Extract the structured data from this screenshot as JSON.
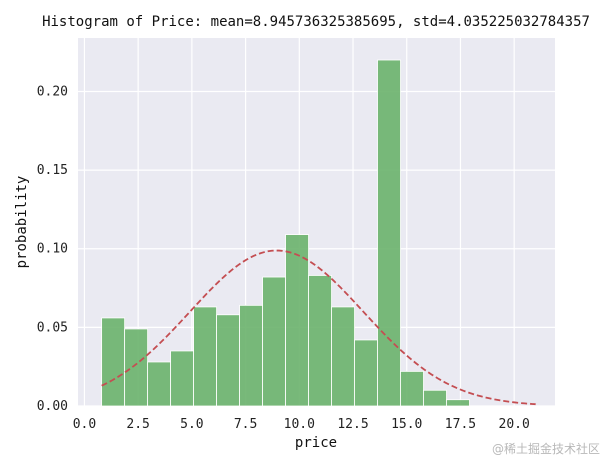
{
  "chart_data": {
    "type": "bar",
    "title": "Histogram of Price: mean=8.945736325385695, std=4.035225032784357",
    "xlabel": "price",
    "ylabel": "probability",
    "xlim": [
      -0.3,
      21.9
    ],
    "ylim": [
      0,
      0.234
    ],
    "grid": true,
    "x_ticks": [
      0.0,
      2.5,
      5.0,
      7.5,
      10.0,
      12.5,
      15.0,
      17.5,
      20.0
    ],
    "x_tick_labels": [
      "0.0",
      "2.5",
      "5.0",
      "7.5",
      "10.0",
      "12.5",
      "15.0",
      "17.5",
      "20.0"
    ],
    "y_ticks": [
      0.0,
      0.05,
      0.1,
      0.15,
      0.2
    ],
    "y_tick_labels": [
      "0.00",
      "0.05",
      "0.10",
      "0.15",
      "0.20"
    ],
    "bin_edges": [
      0.8,
      1.87,
      2.94,
      4.01,
      5.08,
      6.15,
      7.22,
      8.29,
      9.36,
      10.43,
      11.5,
      12.57,
      13.64,
      14.71,
      15.78,
      16.85,
      17.92,
      18.99,
      20.06
    ],
    "values": [
      0.056,
      0.049,
      0.028,
      0.035,
      0.063,
      0.058,
      0.064,
      0.082,
      0.109,
      0.083,
      0.063,
      0.042,
      0.22,
      0.022,
      0.01,
      0.004,
      0.0,
      0.0
    ],
    "bar_color": "#6ab26c",
    "normal_curve": {
      "mean": 8.945736325385695,
      "std": 4.035225032784357,
      "x_range": [
        0.8,
        21.0
      ],
      "color": "#c44e52",
      "style": "dashed"
    }
  },
  "watermark": "@稀土掘金技术社区"
}
